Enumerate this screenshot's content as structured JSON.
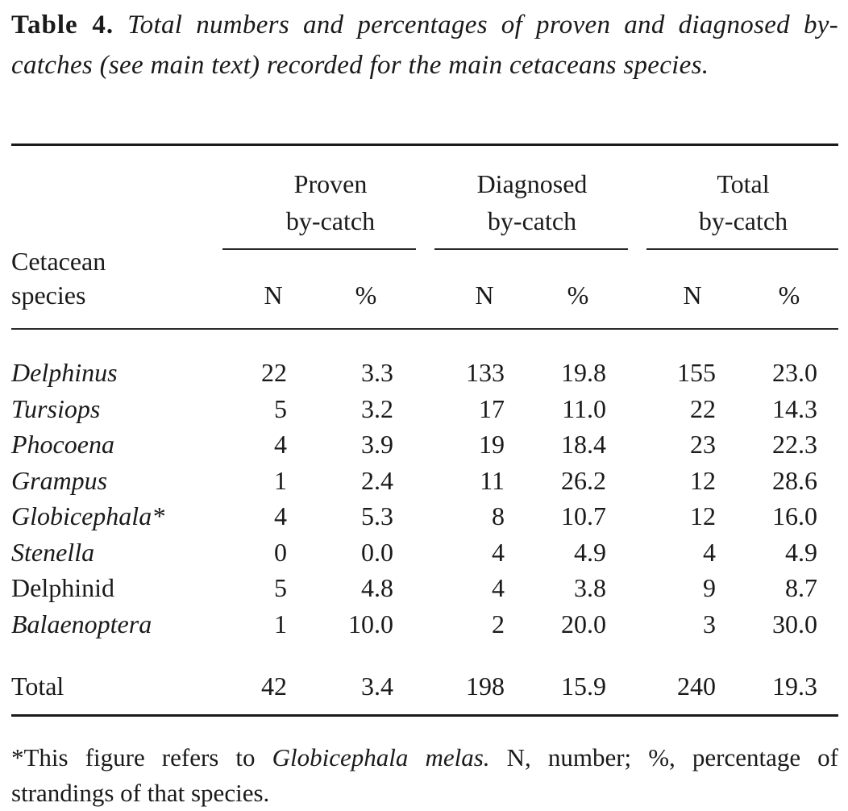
{
  "caption": {
    "label": "Table 4.",
    "text": "Total numbers and percentages of proven and diagnosed by-catches (see main text) recorded for the main cetaceans species."
  },
  "headers": {
    "species_line1": "Cetacean",
    "species_line2": "species",
    "groups": [
      {
        "line1": "Proven",
        "line2": "by-catch"
      },
      {
        "line1": "Diagnosed",
        "line2": "by-catch"
      },
      {
        "line1": "Total",
        "line2": "by-catch"
      }
    ],
    "sub_n": "N",
    "sub_pct": "%"
  },
  "rows": [
    {
      "species": "Delphinus",
      "italic": true,
      "values": [
        "22",
        "3.3",
        "133",
        "19.8",
        "155",
        "23.0"
      ]
    },
    {
      "species": "Tursiops",
      "italic": true,
      "values": [
        "5",
        "3.2",
        "17",
        "11.0",
        "22",
        "14.3"
      ]
    },
    {
      "species": "Phocoena",
      "italic": true,
      "values": [
        "4",
        "3.9",
        "19",
        "18.4",
        "23",
        "22.3"
      ]
    },
    {
      "species": "Grampus",
      "italic": true,
      "values": [
        "1",
        "2.4",
        "11",
        "26.2",
        "12",
        "28.6"
      ]
    },
    {
      "species": "Globicephala*",
      "italic": true,
      "values": [
        "4",
        "5.3",
        "8",
        "10.7",
        "12",
        "16.0"
      ]
    },
    {
      "species": "Stenella",
      "italic": true,
      "values": [
        "0",
        "0.0",
        "4",
        "4.9",
        "4",
        "4.9"
      ]
    },
    {
      "species": "Delphinid",
      "italic": false,
      "values": [
        "5",
        "4.8",
        "4",
        "3.8",
        "9",
        "8.7"
      ]
    },
    {
      "species": "Balaenoptera",
      "italic": true,
      "values": [
        "1",
        "10.0",
        "2",
        "20.0",
        "3",
        "30.0"
      ]
    }
  ],
  "total": {
    "label": "Total",
    "values": [
      "42",
      "3.4",
      "198",
      "15.9",
      "240",
      "19.3"
    ]
  },
  "footnote": {
    "part1": "*This figure refers to ",
    "species_italic": "Globicephala melas.",
    "part2": " N, number; %, percentage of strandings of that species."
  }
}
